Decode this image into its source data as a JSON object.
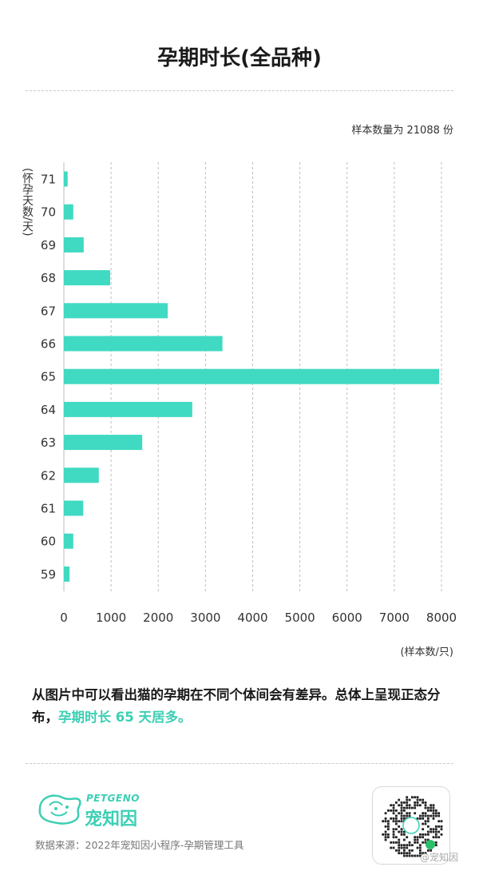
{
  "header": {
    "title": "孕期时长(全品种)",
    "sample_note": "样本数量为 21088 份"
  },
  "chart_data": {
    "type": "bar",
    "orientation": "horizontal",
    "categories": [
      "71",
      "70",
      "69",
      "68",
      "67",
      "66",
      "65",
      "64",
      "63",
      "62",
      "61",
      "60",
      "59"
    ],
    "values": [
      80,
      200,
      420,
      980,
      2200,
      3360,
      7950,
      2720,
      1660,
      740,
      410,
      200,
      120
    ],
    "ylabel": "(怀孕天数/天)",
    "xlabel": "(样本数/只)",
    "xlim": [
      0,
      8000
    ],
    "xticks": [
      0,
      1000,
      2000,
      3000,
      4000,
      5000,
      6000,
      7000,
      8000
    ],
    "grid": "vertical-dashed",
    "bar_color": "#40d9c1"
  },
  "summary": {
    "text_plain": "从图片中可以看出猫的孕期在不同个体间会有差异。总体上呈现正态分布，",
    "text_highlight": "孕期时长 65 天居多。",
    "highlight_color": "#3ccfb4"
  },
  "footer": {
    "brand_en": "PETGENO",
    "brand_cn": "宠知因",
    "source": "数据来源：2022年宠知因小程序-孕期管理工具",
    "watermark": "@宠知因",
    "logo_icon": "petgeno-logo-icon",
    "qr_icon": "mini-program-qr-icon"
  }
}
